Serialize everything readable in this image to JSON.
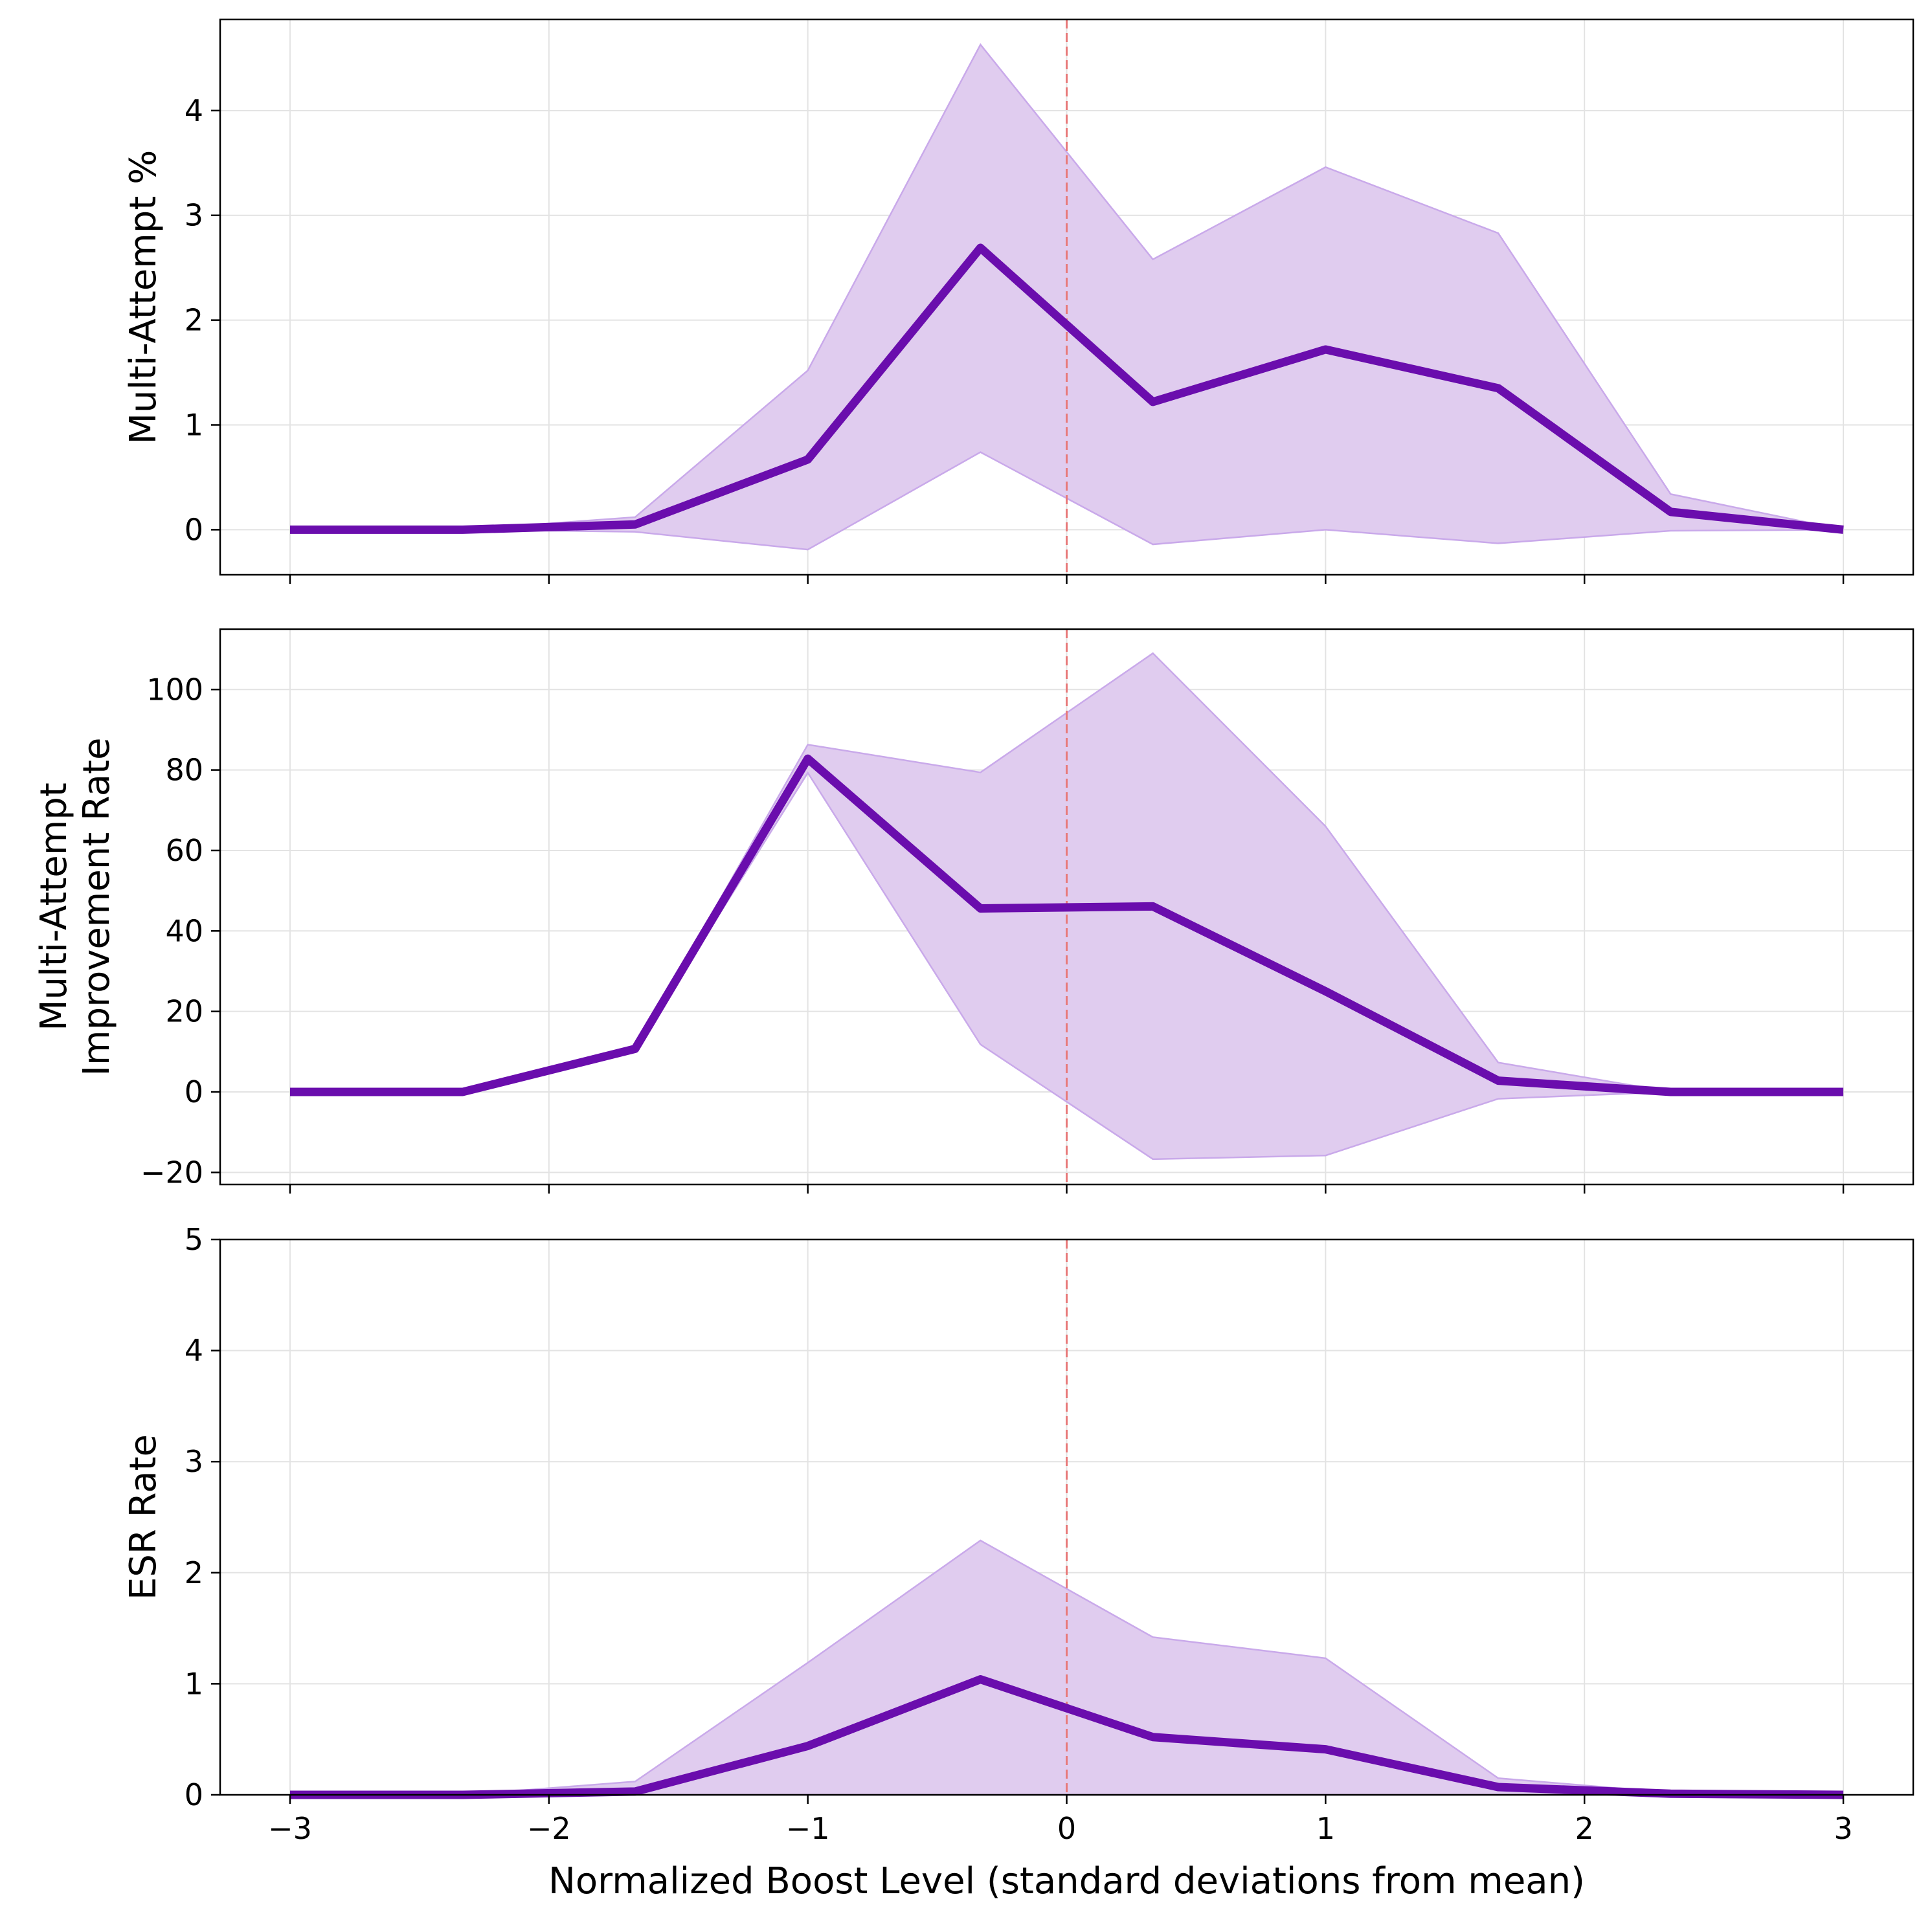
{
  "chart_data": [
    {
      "type": "line",
      "ylabel": [
        "Multi-Attempt %"
      ],
      "xlim": [
        -3.27,
        3.27
      ],
      "ylim": [
        -0.43,
        4.87
      ],
      "x_ticks": [
        -3,
        -2,
        -1,
        0,
        1,
        2,
        3
      ],
      "y_ticks": [
        0,
        1,
        2,
        3,
        4
      ],
      "grid": true,
      "x": [
        -3,
        -2.333,
        -1.667,
        -1,
        -0.333,
        0.333,
        1,
        1.667,
        2.333,
        3
      ],
      "series": [
        {
          "values": [
            0,
            0,
            0.05,
            0.67,
            2.69,
            1.22,
            1.72,
            1.35,
            0.17,
            0
          ],
          "band_upper": [
            0,
            0,
            0.12,
            1.52,
            4.63,
            2.58,
            3.46,
            2.83,
            0.34,
            0
          ],
          "band_lower": [
            0,
            0,
            -0.02,
            -0.19,
            0.74,
            -0.14,
            0,
            -0.13,
            -0.01,
            0
          ]
        }
      ],
      "reference_line_x": 0
    },
    {
      "type": "line",
      "ylabel": [
        "Multi-Attempt",
        "Improvement Rate"
      ],
      "xlim": [
        -3.27,
        3.27
      ],
      "ylim": [
        -23,
        115
      ],
      "x_ticks": [
        -3,
        -2,
        -1,
        0,
        1,
        2,
        3
      ],
      "y_ticks": [
        -20,
        0,
        20,
        40,
        60,
        80,
        100
      ],
      "grid": true,
      "x": [
        -3,
        -2.333,
        -1.667,
        -1,
        -0.333,
        0.333,
        1,
        1.667,
        2.333,
        3
      ],
      "series": [
        {
          "values": [
            0,
            0,
            10.7,
            82.8,
            45.6,
            46.1,
            25,
            2.8,
            0,
            0
          ],
          "band_upper": [
            0,
            0,
            10.7,
            86.3,
            79.4,
            109.0,
            66,
            7.3,
            0,
            0
          ],
          "band_lower": [
            0,
            0,
            10.7,
            79.3,
            11.8,
            -16.7,
            -15.8,
            -1.7,
            0,
            0
          ]
        }
      ],
      "reference_line_x": 0
    },
    {
      "type": "line",
      "ylabel": [
        "ESR Rate"
      ],
      "xlabel": "Normalized Boost Level (standard deviations from mean)",
      "xlim": [
        -3.27,
        3.27
      ],
      "ylim": [
        0,
        5
      ],
      "x_ticks": [
        -3,
        -2,
        -1,
        0,
        1,
        2,
        3
      ],
      "y_ticks": [
        0,
        1,
        2,
        3,
        4,
        5
      ],
      "grid": true,
      "x": [
        -3,
        -2.333,
        -1.667,
        -1,
        -0.333,
        0.333,
        1,
        1.667,
        2.333,
        3
      ],
      "series": [
        {
          "values": [
            0,
            0,
            0.03,
            0.44,
            1.04,
            0.52,
            0.41,
            0.07,
            0.01,
            0
          ],
          "band_upper": [
            0,
            0,
            0.12,
            1.19,
            2.29,
            1.42,
            1.23,
            0.15,
            0.02,
            0
          ],
          "band_lower": [
            0,
            0,
            0,
            0,
            0,
            0,
            0,
            0,
            0,
            0
          ]
        }
      ],
      "reference_line_x": 0
    }
  ],
  "colors": {
    "line": "#6a0dad",
    "band": "#e0ccef",
    "band_edge": "#c9a9ea",
    "reference": "#e87a7a",
    "grid": "#e3e3e3",
    "axis": "#000000"
  }
}
